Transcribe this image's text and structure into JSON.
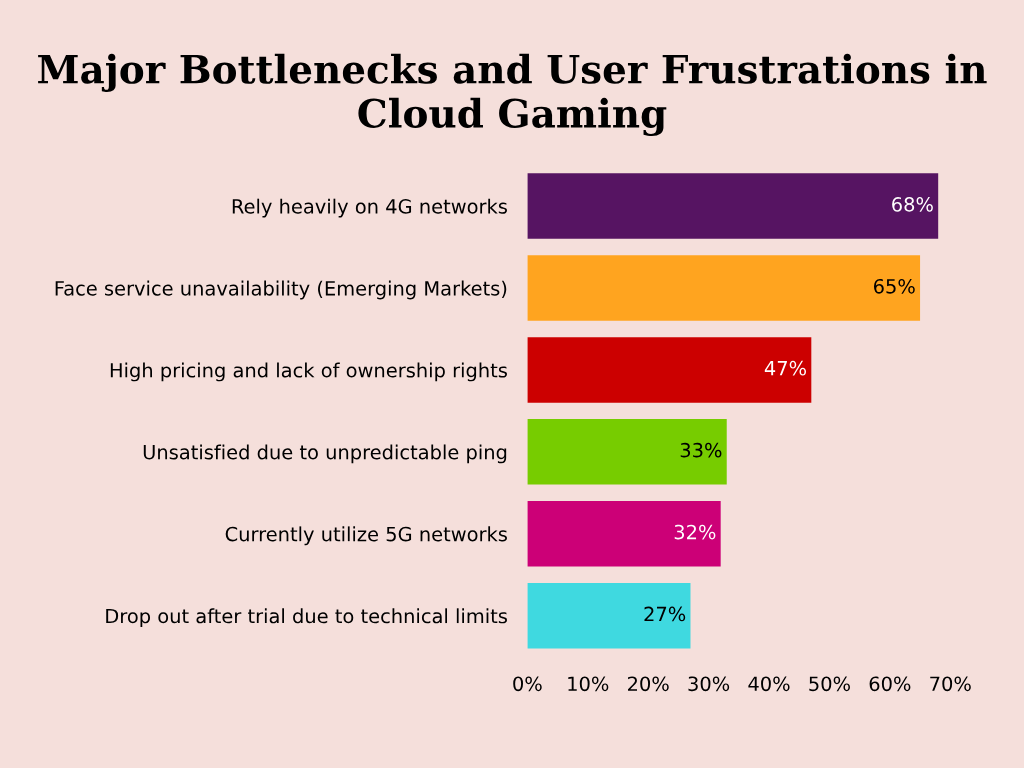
{
  "chart_data": {
    "type": "bar",
    "orientation": "horizontal",
    "title": "Major Bottlenecks and User Frustrations in Cloud Gaming",
    "categories": [
      "Rely heavily on 4G networks",
      "Face service unavailability (Emerging Markets)",
      "High pricing and lack of ownership rights",
      "Unsatisfied due to unpredictable ping",
      "Currently utilize 5G networks",
      "Drop out after trial due to technical limits"
    ],
    "values": [
      68,
      65,
      47,
      33,
      32,
      27
    ],
    "colors": [
      "#561462",
      "#ffa41f",
      "#cc0000",
      "#77cc00",
      "#cc0077",
      "#3fd9e0"
    ],
    "value_labels": [
      "68%",
      "65%",
      "47%",
      "33%",
      "32%",
      "27%"
    ],
    "xlim": [
      0,
      70
    ],
    "xticks": [
      {
        "value": 0,
        "label": "0%"
      },
      {
        "value": 10,
        "label": "10%"
      },
      {
        "value": 20,
        "label": "20%"
      },
      {
        "value": 30,
        "label": "30%"
      },
      {
        "value": 40,
        "label": "40%"
      },
      {
        "value": 50,
        "label": "50%"
      },
      {
        "value": 60,
        "label": "60%"
      },
      {
        "value": 70,
        "label": "70%"
      }
    ],
    "grid": false,
    "legend": false
  }
}
